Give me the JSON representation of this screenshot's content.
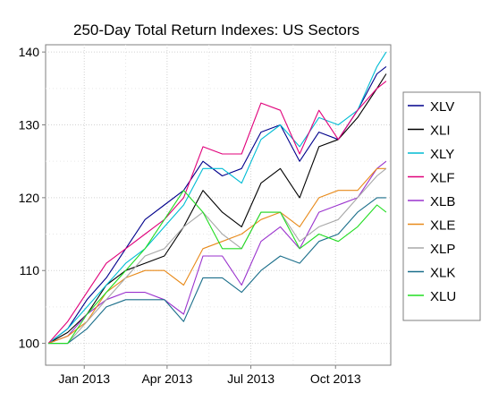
{
  "chart_data": {
    "type": "line",
    "title": "250-Day Total Return Indexes: US Sectors",
    "xlabel": "",
    "ylabel": "",
    "x_tick_labels": [
      "Jan 2013",
      "Apr 2013",
      "Jul 2013",
      "Oct 2013"
    ],
    "x_tick_dates": [
      "2013-01-01",
      "2013-04-01",
      "2013-07-01",
      "2013-10-01"
    ],
    "x_range": [
      "2012-11-20",
      "2013-11-30"
    ],
    "y_ticks": [
      100,
      110,
      120,
      130,
      140
    ],
    "ylim": [
      97,
      141
    ],
    "grid": true,
    "legend_position": "right",
    "x": [
      "2012-11-23",
      "2012-12-14",
      "2013-01-04",
      "2013-01-25",
      "2013-02-15",
      "2013-03-08",
      "2013-03-29",
      "2013-04-19",
      "2013-05-10",
      "2013-05-31",
      "2013-06-21",
      "2013-07-12",
      "2013-08-02",
      "2013-08-23",
      "2013-09-13",
      "2013-10-04",
      "2013-10-25",
      "2013-11-15",
      "2013-11-25"
    ],
    "series": [
      {
        "name": "XLV",
        "color": "#00008b",
        "values": [
          100,
          102,
          106,
          109,
          113,
          117,
          119,
          121,
          125,
          123,
          124,
          129,
          130,
          125,
          129,
          128,
          132,
          137,
          138
        ]
      },
      {
        "name": "XLI",
        "color": "#000000",
        "values": [
          100,
          101.5,
          104,
          108,
          110,
          111,
          112,
          116,
          121,
          118,
          116,
          122,
          124,
          120,
          127,
          128,
          131,
          135,
          137
        ]
      },
      {
        "name": "XLY",
        "color": "#00bcd4",
        "values": [
          100,
          102,
          105,
          108,
          111,
          113,
          116,
          119,
          124,
          124,
          122,
          128,
          130,
          127,
          131,
          130,
          132,
          138,
          140
        ]
      },
      {
        "name": "XLF",
        "color": "#e0007a",
        "values": [
          100,
          103,
          107,
          111,
          113,
          115,
          117,
          120,
          127,
          126,
          126,
          133,
          132,
          126,
          132,
          128,
          132,
          135,
          136
        ]
      },
      {
        "name": "XLB",
        "color": "#9a32cd",
        "values": [
          100,
          101,
          104,
          106,
          107,
          107,
          106,
          104,
          112,
          112,
          108,
          114,
          116,
          113,
          118,
          119,
          120,
          124,
          125
        ]
      },
      {
        "name": "XLE",
        "color": "#e88a1a",
        "values": [
          100,
          101,
          103,
          107,
          109,
          110,
          110,
          108,
          113,
          114,
          115,
          117,
          118,
          116,
          120,
          121,
          121,
          124,
          124
        ]
      },
      {
        "name": "XLP",
        "color": "#a8a8a8",
        "values": [
          100,
          100,
          103,
          106,
          109,
          112,
          113,
          116,
          118,
          115,
          113,
          118,
          118,
          114,
          116,
          117,
          120,
          123,
          124
        ]
      },
      {
        "name": "XLK",
        "color": "#1a6e8a",
        "values": [
          100,
          100,
          102,
          105,
          106,
          106,
          106,
          103,
          109,
          109,
          107,
          110,
          112,
          111,
          114,
          115,
          118,
          120,
          120
        ]
      },
      {
        "name": "XLU",
        "color": "#22dd22",
        "values": [
          100,
          100,
          104,
          107,
          110,
          113,
          117,
          121,
          118,
          113,
          113,
          118,
          118,
          113,
          115,
          114,
          116,
          119,
          118
        ]
      }
    ]
  }
}
